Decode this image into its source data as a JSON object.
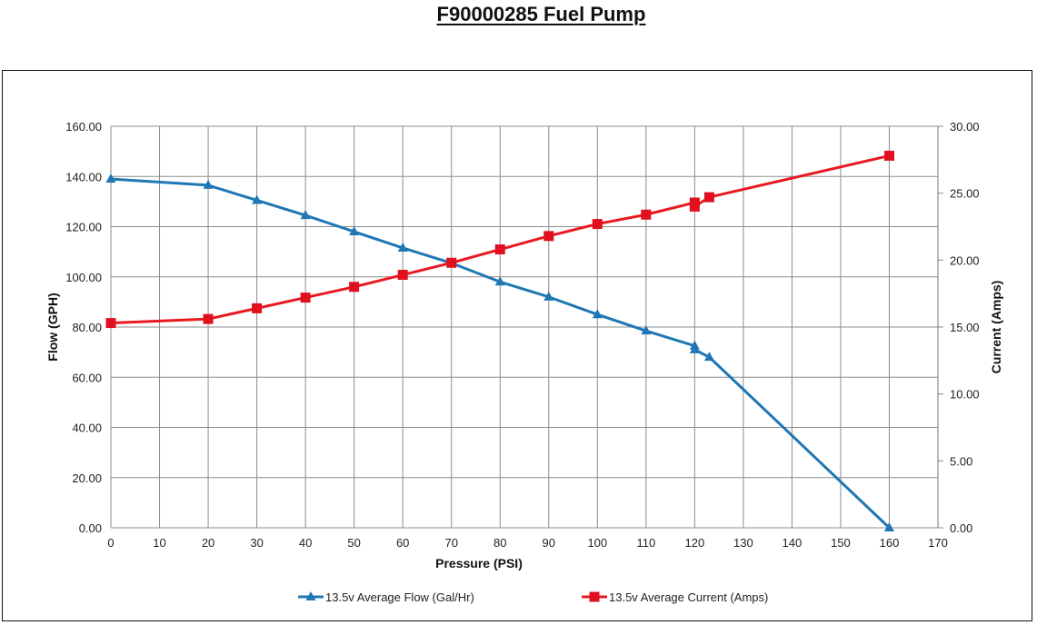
{
  "title": "F90000285 Fuel Pump",
  "chart_data": {
    "type": "line",
    "title": "F90000285 Fuel Pump",
    "xlabel": "Pressure (PSI)",
    "ylabel": "Flow (GPH)",
    "y2label": "Current (Amps)",
    "xlim": [
      0,
      170
    ],
    "ylim": [
      0,
      160
    ],
    "y2lim": [
      0,
      30
    ],
    "x_ticks": [
      "0",
      "10",
      "20",
      "30",
      "40",
      "50",
      "60",
      "70",
      "80",
      "90",
      "100",
      "110",
      "120",
      "130",
      "140",
      "150",
      "160",
      "170"
    ],
    "y_ticks": [
      "0.00",
      "20.00",
      "40.00",
      "60.00",
      "80.00",
      "100.00",
      "120.00",
      "140.00",
      "160.00"
    ],
    "y2_ticks": [
      "0.00",
      "5.00",
      "10.00",
      "15.00",
      "20.00",
      "25.00",
      "30.00"
    ],
    "grid": true,
    "legend_position": "bottom",
    "series": [
      {
        "name": "13.5v Average Flow (Gal/Hr)",
        "axis": "left",
        "color": "#1f77b4",
        "marker": "triangle",
        "x": [
          0,
          20,
          30,
          40,
          50,
          60,
          70,
          80,
          90,
          100,
          110,
          120,
          120,
          123,
          160
        ],
        "values": [
          139,
          136.5,
          130.5,
          124.5,
          118,
          111.5,
          105.5,
          98,
          92,
          85,
          78.5,
          72.5,
          71,
          68,
          0
        ]
      },
      {
        "name": "13.5v Average Current (Amps)",
        "axis": "right",
        "color": "#e8191f",
        "marker": "square",
        "x": [
          0,
          20,
          30,
          40,
          50,
          60,
          70,
          80,
          90,
          100,
          110,
          120,
          120,
          123,
          160
        ],
        "values": [
          15.3,
          15.6,
          16.4,
          17.2,
          18.0,
          18.9,
          19.8,
          20.8,
          21.8,
          22.7,
          23.4,
          24.3,
          24.0,
          24.7,
          27.8
        ]
      }
    ]
  }
}
